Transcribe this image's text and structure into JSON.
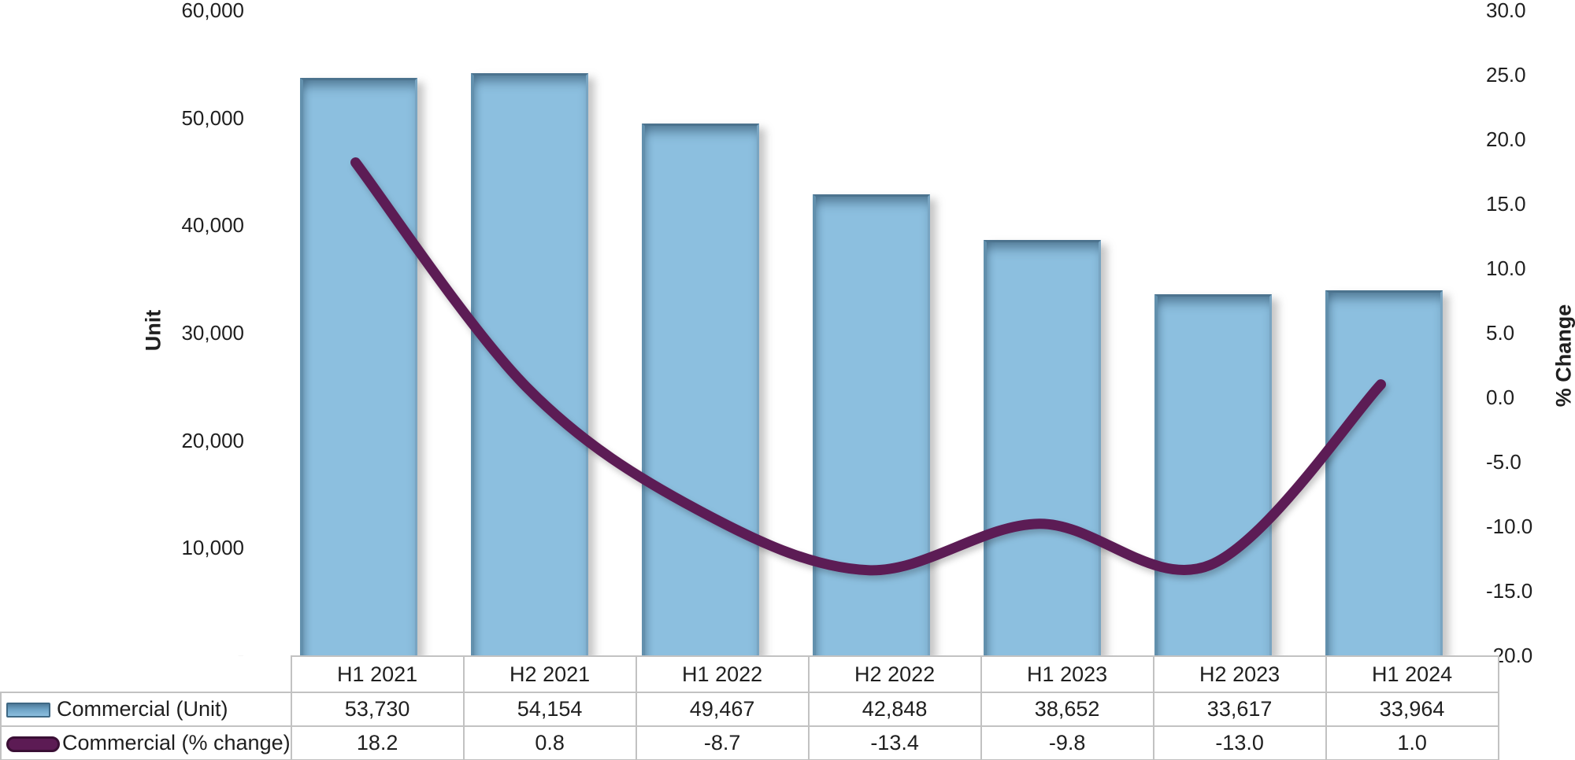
{
  "chart_data": {
    "type": "combo",
    "categories": [
      "H1 2021",
      "H2 2021",
      "H1 2022",
      "H2 2022",
      "H1 2023",
      "H2 2023",
      "H1 2024"
    ],
    "series": [
      {
        "name": "Commercial (Unit)",
        "type": "bar",
        "axis": "left",
        "values": [
          53730,
          54154,
          49467,
          42848,
          38652,
          33617,
          33964
        ],
        "color": "#8cbfdf"
      },
      {
        "name": "Commercial (% change)",
        "type": "line",
        "axis": "right",
        "values": [
          18.2,
          0.8,
          -8.7,
          -13.4,
          -9.8,
          -13.0,
          1.0
        ],
        "color": "#5c1b54",
        "smooth": true
      }
    ],
    "left_axis": {
      "title": "Unit",
      "min": 0,
      "max": 60000,
      "step": 10000,
      "tick_labels": [
        "-",
        "10,000",
        "20,000",
        "30,000",
        "40,000",
        "50,000",
        "60,000"
      ]
    },
    "right_axis": {
      "title": "% Change",
      "min": -20,
      "max": 30,
      "step": 5,
      "tick_labels": [
        "-20.0",
        "-15.0",
        "-10.0",
        "-5.0",
        "0.0",
        "5.0",
        "10.0",
        "15.0",
        "20.0",
        "25.0",
        "30.0"
      ]
    },
    "grid": false,
    "legend_position": "table-left"
  },
  "table": {
    "columns": [
      "H1 2021",
      "H2 2021",
      "H1 2022",
      "H2 2022",
      "H1 2023",
      "H2 2023",
      "H1 2024"
    ],
    "rows": [
      {
        "label": "Commercial (Unit)",
        "swatch": "bar",
        "values": [
          "53,730",
          "54,154",
          "49,467",
          "42,848",
          "38,652",
          "33,617",
          "33,964"
        ]
      },
      {
        "label": "Commercial (% change)",
        "swatch": "line",
        "values": [
          "18.2",
          "0.8",
          "-8.7",
          "-13.4",
          "-9.8",
          "-13.0",
          "1.0"
        ]
      }
    ]
  },
  "colors": {
    "bar_fill": "#8cbfdf",
    "bar_border": "#4c738e",
    "line": "#5c1b54",
    "table_border": "#c2c2c2",
    "text": "#1f1f1f",
    "background": "#ffffff"
  }
}
